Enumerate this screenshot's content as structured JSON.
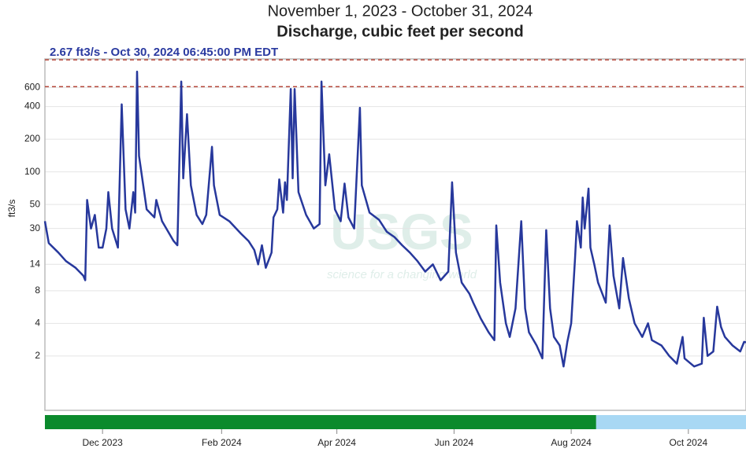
{
  "chart_data": {
    "type": "line",
    "title": "November 1, 2023 - October 31, 2024",
    "subtitle": "Discharge, cubic feet per second",
    "annotation": "2.67 ft3/s - Oct 30, 2024 06:45:00 PM EDT",
    "y_label": "ft3/s",
    "watermark": "USGS",
    "watermark_tagline": "science for a changing world",
    "log_scale": true,
    "grid": true,
    "ylim": [
      0.63,
      1100
    ],
    "yticks": [
      2,
      4,
      8,
      14,
      30,
      50,
      100,
      200,
      400,
      600
    ],
    "xlim": [
      0,
      365
    ],
    "xticks": [
      {
        "value": 30,
        "label": "Dec 2023"
      },
      {
        "value": 92,
        "label": "Feb 2024"
      },
      {
        "value": 152,
        "label": "Apr 2024"
      },
      {
        "value": 213,
        "label": "Jun 2024"
      },
      {
        "value": 274,
        "label": "Aug 2024"
      },
      {
        "value": 335,
        "label": "Oct 2024"
      }
    ],
    "hlines": {
      "values": [
        1080,
        610
      ],
      "color": "#b5473a"
    },
    "bands": [
      {
        "start": 0,
        "end": 287,
        "color": "#0b8a2c"
      },
      {
        "start": 287,
        "end": 365,
        "color": "#a8d8f4"
      }
    ],
    "series": [
      {
        "color": "#27389c",
        "x": [
          0,
          2,
          7,
          11,
          16,
          20,
          21,
          22,
          24,
          26,
          28,
          30,
          32,
          33,
          35,
          38,
          40,
          42,
          44,
          46,
          47,
          48,
          49,
          53,
          57,
          58,
          61,
          67,
          69,
          71,
          72,
          74,
          76,
          79,
          82,
          84,
          87,
          88,
          91,
          96,
          102,
          106,
          109,
          111,
          113,
          115,
          118,
          119,
          121,
          122,
          124,
          125,
          126,
          128,
          129,
          130,
          132,
          136,
          140,
          143,
          144,
          146,
          148,
          151,
          154,
          156,
          158,
          161,
          164,
          165,
          169,
          174,
          178,
          182,
          186,
          190,
          194,
          198,
          202,
          206,
          210,
          212,
          214,
          217,
          221,
          223,
          227,
          231,
          234,
          235,
          237,
          240,
          242,
          245,
          248,
          250,
          252,
          256,
          259,
          261,
          263,
          265,
          268,
          270,
          272,
          274,
          276,
          277,
          279,
          280,
          281,
          283,
          284,
          286,
          288,
          292,
          294,
          296,
          299,
          301,
          304,
          307,
          311,
          314,
          316,
          321,
          325,
          329,
          332,
          333,
          338,
          342,
          343,
          345,
          348,
          350,
          352,
          354,
          358,
          362,
          364,
          365
        ],
        "values": [
          35,
          22,
          18,
          15,
          13,
          11,
          10,
          55,
          30,
          40,
          20,
          20,
          30,
          65,
          30,
          20,
          420,
          45,
          30,
          65,
          42,
          840,
          140,
          45,
          38,
          55,
          35,
          23,
          21,
          680,
          87,
          340,
          75,
          40,
          33,
          40,
          170,
          75,
          40,
          35,
          27,
          23,
          19,
          14,
          21,
          13,
          18,
          38,
          45,
          85,
          42,
          80,
          55,
          580,
          87,
          580,
          65,
          40,
          30,
          33,
          680,
          75,
          145,
          45,
          35,
          78,
          38,
          30,
          390,
          75,
          42,
          36,
          28,
          25,
          21,
          18,
          15,
          12,
          14,
          10,
          12,
          80,
          18,
          9.5,
          7.5,
          6.2,
          4.4,
          3.3,
          2.8,
          32,
          9.5,
          4,
          3,
          5.5,
          35,
          5.5,
          3.3,
          2.5,
          1.9,
          29,
          5.5,
          3,
          2.5,
          1.6,
          2.7,
          4,
          16,
          35,
          20,
          58,
          30,
          70,
          20,
          14,
          9.5,
          6.2,
          32,
          11,
          5.5,
          16,
          6.8,
          4,
          3,
          4,
          2.8,
          2.5,
          2,
          1.7,
          3,
          1.9,
          1.6,
          1.7,
          4.5,
          2,
          2.2,
          5.7,
          3.7,
          3,
          2.5,
          2.2,
          2.7,
          2.67
        ]
      }
    ]
  }
}
